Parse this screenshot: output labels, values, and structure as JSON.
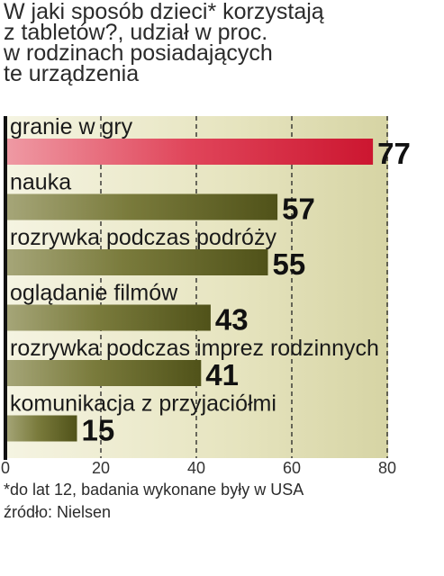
{
  "chart_data": {
    "type": "bar",
    "orientation": "horizontal",
    "title": "W jaki sposób dzieci* korzystają\nz tabletów?, udział w proc.\nw rodzinach posiadających\nte urządzenia",
    "categories": [
      "granie w gry",
      "nauka",
      "rozrywka podczas podróży",
      "oglądanie filmów",
      "rozrywka podczas imprez rodzinnych",
      "komunikacja z przyjaciółmi"
    ],
    "values": [
      77,
      57,
      55,
      43,
      41,
      15
    ],
    "xlim": [
      0,
      80
    ],
    "ticks": [
      0,
      20,
      40,
      60,
      80
    ],
    "grid": true,
    "highlight_color": "#d9283f",
    "bar_color": "#5e5f24",
    "background_color": "#eae9c8"
  },
  "footnote": "*do lat 12, badania wykonane były w USA",
  "source": "źródło: Nielsen"
}
